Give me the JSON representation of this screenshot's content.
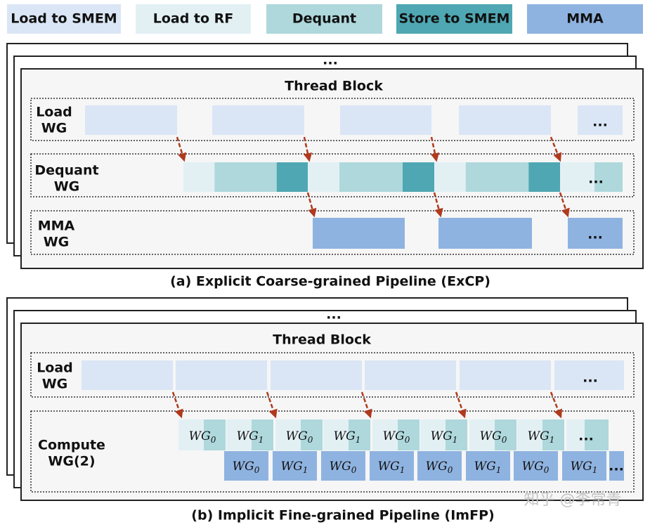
{
  "legend": [
    "Load to SMEM",
    "Load to RF",
    "Dequant",
    "Store to SMEM",
    "MMA"
  ],
  "panel_a": {
    "stack_label": "...",
    "title": "Thread Block",
    "rows": [
      {
        "label": [
          "Load",
          "WG"
        ],
        "more": "..."
      },
      {
        "label": [
          "Dequant",
          "WG"
        ],
        "more": "..."
      },
      {
        "label": [
          "MMA",
          "WG"
        ],
        "more": "..."
      }
    ],
    "caption": "(a) Explicit Coarse-grained Pipeline (ExCP)"
  },
  "panel_b": {
    "stack_label": "...",
    "title": "Thread Block",
    "rows": [
      {
        "label": [
          "Load",
          "WG"
        ],
        "more": "..."
      },
      {
        "label": [
          "Compute",
          "WG(2)"
        ],
        "more": "..."
      }
    ],
    "compute_top": [
      {
        "name": "WG",
        "sub": "0"
      },
      {
        "name": "WG",
        "sub": "1"
      },
      {
        "name": "WG",
        "sub": "0"
      },
      {
        "name": "WG",
        "sub": "1"
      },
      {
        "name": "WG",
        "sub": "0"
      },
      {
        "name": "WG",
        "sub": "1"
      },
      {
        "name": "WG",
        "sub": "0"
      },
      {
        "name": "WG",
        "sub": "1"
      }
    ],
    "compute_bottom": [
      {
        "name": "WG",
        "sub": "0"
      },
      {
        "name": "WG",
        "sub": "1"
      },
      {
        "name": "WG",
        "sub": "0"
      },
      {
        "name": "WG",
        "sub": "1"
      },
      {
        "name": "WG",
        "sub": "0"
      },
      {
        "name": "WG",
        "sub": "1"
      },
      {
        "name": "WG",
        "sub": "0"
      },
      {
        "name": "WG",
        "sub": "1"
      }
    ],
    "compute_more": [
      "...",
      "..."
    ],
    "caption": "(b) Implicit Fine-grained Pipeline (ImFP)"
  },
  "watermark": "知乎 @李常青"
}
